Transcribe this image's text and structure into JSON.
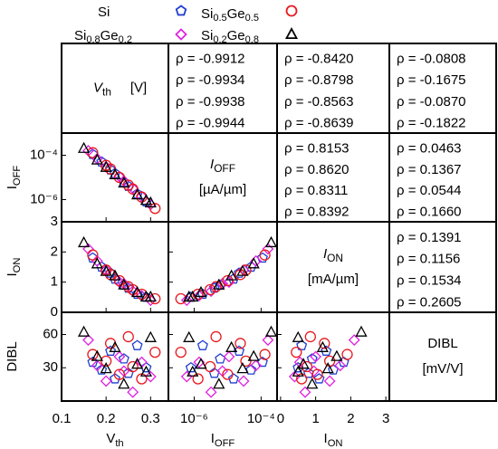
{
  "chart_data": {
    "type": "scatter",
    "variables": [
      {
        "symbol": "V",
        "sub": "th",
        "unit": "[V]",
        "log": false,
        "xlim": [
          0.1,
          0.34
        ],
        "xticks": [
          0.1,
          0.2,
          0.3
        ]
      },
      {
        "symbol": "I",
        "sub": "OFF",
        "unit": "[µA/µm]",
        "log": true,
        "xlim": [
          1.7e-07,
          0.0003
        ],
        "xticks": [
          {
            "value": 1e-06,
            "label": "10⁻⁶"
          },
          {
            "value": 0.0001,
            "label": "10⁻⁴"
          }
        ],
        "ylim": [
          1e-07,
          0.001
        ],
        "yticks": [
          {
            "value": 1e-06,
            "label": "10⁻⁶"
          },
          {
            "value": 0.0001,
            "label": "10⁻⁴"
          }
        ]
      },
      {
        "symbol": "I",
        "sub": "ON",
        "unit": "[mA/µm]",
        "log": false,
        "xlim": [
          -0.1,
          3.1
        ],
        "xticks": [
          0,
          1,
          2,
          3
        ],
        "ylim": [
          0,
          3
        ],
        "yticks": [
          0,
          1,
          2,
          3
        ]
      },
      {
        "symbol": "DIBL",
        "sub": "",
        "unit": "[mV/V]",
        "log": false,
        "ylim": [
          0,
          80
        ],
        "yticks": [
          30,
          60
        ]
      }
    ],
    "series": [
      {
        "name": "Si",
        "color": "#1f3fd0",
        "marker": "pentagon",
        "values": [
          [
            0.17,
            0.19,
            0.21,
            0.22,
            0.24,
            0.25,
            0.27,
            0.29
          ],
          [
            0.00011,
            5e-05,
            2.2e-05,
            1.5e-05,
            6e-06,
            4e-06,
            1.8e-06,
            8e-07
          ],
          [
            1.8,
            1.5,
            1.3,
            1.1,
            0.9,
            0.8,
            0.6,
            0.5
          ],
          [
            35,
            28,
            45,
            20,
            38,
            25,
            50,
            30
          ]
        ],
        "rho": [
          -0.9912,
          -0.842,
          -0.0808,
          0.8153,
          0.0463,
          0.1391
        ],
        "rho_labels": [
          "ρ = -0.9912",
          "ρ = -0.8420",
          "ρ = -0.0808",
          "ρ = 0.8153",
          "ρ = 0.0463",
          "ρ = 0.1391"
        ]
      },
      {
        "name": "Si0.8Ge0.2",
        "color": "#e020e0",
        "marker": "diamond",
        "values": [
          [
            0.16,
            0.18,
            0.2,
            0.23,
            0.24,
            0.26,
            0.28,
            0.3
          ],
          [
            0.00016,
            7e-05,
            3e-05,
            1.1e-05,
            7e-06,
            3.2e-06,
            1.4e-06,
            6e-07
          ],
          [
            2.1,
            1.7,
            1.4,
            1.0,
            0.95,
            0.7,
            0.55,
            0.4
          ],
          [
            55,
            32,
            18,
            40,
            27,
            8,
            35,
            22
          ]
        ],
        "rho": [
          -0.9934,
          -0.8798,
          -0.1675,
          0.862,
          0.1367,
          0.1156
        ],
        "rho_labels": [
          "ρ = -0.9934",
          "ρ = -0.8798",
          "ρ = -0.1675",
          "ρ = 0.8620",
          "ρ = 0.1367",
          "ρ = 0.1156"
        ]
      },
      {
        "name": "Si0.5Ge0.5",
        "color": "#e8191f",
        "marker": "circle",
        "values": [
          [
            0.17,
            0.2,
            0.21,
            0.23,
            0.25,
            0.26,
            0.28,
            0.31
          ],
          [
            0.00013,
            3.5e-05,
            2.4e-05,
            1e-05,
            4.5e-06,
            3e-06,
            1.3e-06,
            4e-07
          ],
          [
            1.9,
            1.4,
            1.25,
            1.05,
            0.85,
            0.75,
            0.6,
            0.45
          ],
          [
            42,
            36,
            52,
            24,
            58,
            31,
            20,
            44
          ]
        ],
        "rho": [
          -0.9938,
          -0.8563,
          -0.087,
          0.8311,
          0.0544,
          0.1534
        ],
        "rho_labels": [
          "ρ = -0.9938",
          "ρ = -0.8563",
          "ρ = -0.0870",
          "ρ = 0.8311",
          "ρ = 0.0544",
          "ρ = 0.1534"
        ]
      },
      {
        "name": "Si0.2Ge0.8",
        "color": "#000000",
        "marker": "triangle",
        "values": [
          [
            0.15,
            0.18,
            0.2,
            0.22,
            0.24,
            0.27,
            0.29,
            0.3
          ],
          [
            0.0002,
            6e-05,
            2.8e-05,
            1.3e-05,
            5.5e-06,
            1.6e-06,
            9e-07,
            7e-07
          ],
          [
            2.3,
            1.6,
            1.35,
            1.2,
            0.9,
            0.65,
            0.5,
            0.5
          ],
          [
            62,
            40,
            29,
            48,
            15,
            33,
            26,
            57
          ]
        ],
        "rho": [
          -0.9944,
          -0.8639,
          -0.1822,
          0.8392,
          0.166,
          0.2605
        ],
        "rho_labels": [
          "ρ = -0.9944",
          "ρ = -0.8639",
          "ρ = -0.1822",
          "ρ = 0.8392",
          "ρ = 0.1660",
          "ρ = 0.2605"
        ]
      }
    ]
  }
}
